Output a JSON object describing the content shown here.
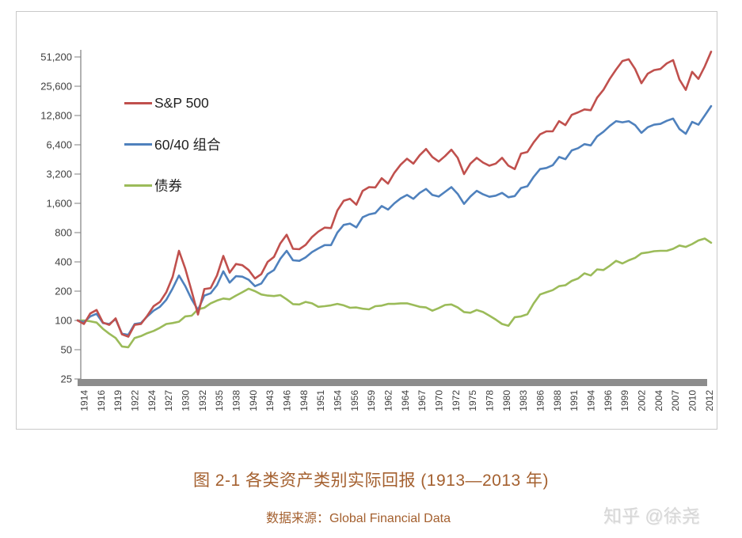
{
  "caption": "图 2-1 各类资产类别实际回报 (1913—2013 年)",
  "source_line": "数据来源：Global Financial Data",
  "watermark": "知乎 @徐尧",
  "colors": {
    "sp500": "#C0504D",
    "portfolio6040": "#4F81BD",
    "bonds": "#9BBB59",
    "axis": "#7f7f7f",
    "axis_bar": "#8c8c8c",
    "tick_text": "#3f3f3f",
    "caption_text": "#a4602f",
    "frame_border": "#c9c9c9",
    "watermark_text": "#d7d7d7"
  },
  "chart_data": {
    "type": "line",
    "title": "图 2-1 各类资产类别实际回报 (1913—2013 年)",
    "source": "数据来源：Global Financial Data",
    "grid": false,
    "legend_position": "upper-left",
    "y_axis": {
      "scale": "log2",
      "min": 25,
      "max": 51200,
      "ticks": [
        {
          "value": 51200,
          "label": "51,200"
        },
        {
          "value": 25600,
          "label": "25,600"
        },
        {
          "value": 12800,
          "label": "12,800"
        },
        {
          "value": 6400,
          "label": "6,400"
        },
        {
          "value": 3200,
          "label": "3,200"
        },
        {
          "value": 1600,
          "label": "1,600"
        },
        {
          "value": 800,
          "label": "800"
        },
        {
          "value": 400,
          "label": "400"
        },
        {
          "value": 200,
          "label": "200"
        },
        {
          "value": 100,
          "label": "100"
        },
        {
          "value": 50,
          "label": "50"
        },
        {
          "value": 25,
          "label": "25"
        }
      ]
    },
    "x_axis": {
      "first_tick_year": 1914,
      "tick_interval_months": 32,
      "tick_labels": [
        "1914",
        "1916",
        "1919",
        "1922",
        "1924",
        "1927",
        "1930",
        "1932",
        "1935",
        "1938",
        "1940",
        "1943",
        "1946",
        "1948",
        "1951",
        "1954",
        "1956",
        "1959",
        "1962",
        "1964",
        "1967",
        "1970",
        "1972",
        "1975",
        "1978",
        "1980",
        "1983",
        "1986",
        "1988",
        "1991",
        "1994",
        "1996",
        "1999",
        "2002",
        "2004",
        "2007",
        "2010",
        "2012"
      ]
    },
    "x_years": {
      "start": 1913,
      "end": 2013,
      "step": 1
    },
    "series": [
      {
        "name": "S&P 500",
        "color": "#C0504D",
        "values": [
          100,
          92,
          118,
          128,
          95,
          90,
          105,
          72,
          68,
          90,
          92,
          112,
          140,
          155,
          195,
          280,
          520,
          340,
          200,
          115,
          210,
          215,
          290,
          460,
          310,
          380,
          370,
          330,
          270,
          300,
          400,
          450,
          620,
          760,
          545,
          540,
          600,
          720,
          820,
          900,
          890,
          1350,
          1700,
          1780,
          1550,
          2150,
          2350,
          2330,
          2900,
          2550,
          3300,
          4000,
          4600,
          4100,
          5000,
          5800,
          4800,
          4300,
          4900,
          5700,
          4700,
          3200,
          4100,
          4700,
          4200,
          3900,
          4100,
          4700,
          3900,
          3600,
          5200,
          5400,
          6800,
          8200,
          8800,
          8800,
          11200,
          10200,
          13000,
          13800,
          14800,
          14500,
          19500,
          23500,
          30500,
          38000,
          46500,
          48500,
          38500,
          27500,
          34500,
          37500,
          38500,
          44000,
          47500,
          30000,
          23500,
          36000,
          30500,
          41000,
          58000
        ]
      },
      {
        "name": "60/40 组合",
        "color": "#4F81BD",
        "values": [
          100,
          96,
          110,
          117,
          94,
          92,
          103,
          73,
          71,
          92,
          94,
          110,
          126,
          138,
          163,
          213,
          290,
          225,
          165,
          128,
          180,
          190,
          230,
          320,
          245,
          285,
          282,
          262,
          225,
          240,
          300,
          330,
          430,
          520,
          415,
          410,
          445,
          505,
          550,
          595,
          595,
          800,
          960,
          990,
          905,
          1150,
          1230,
          1270,
          1500,
          1380,
          1600,
          1800,
          1950,
          1780,
          2050,
          2250,
          1950,
          1880,
          2100,
          2350,
          2000,
          1580,
          1880,
          2150,
          1980,
          1870,
          1920,
          2050,
          1850,
          1900,
          2300,
          2400,
          3000,
          3600,
          3700,
          3950,
          4800,
          4550,
          5600,
          5900,
          6500,
          6300,
          7800,
          8700,
          10000,
          11200,
          10900,
          11200,
          10200,
          8500,
          9700,
          10300,
          10500,
          11300,
          11900,
          9300,
          8300,
          11000,
          10300,
          12800,
          16000
        ]
      },
      {
        "name": "债券",
        "color": "#9BBB59",
        "values": [
          100,
          100,
          98,
          95,
          82,
          73,
          66,
          54,
          53,
          66,
          69,
          74,
          78,
          84,
          92,
          94,
          97,
          110,
          112,
          130,
          135,
          150,
          160,
          168,
          165,
          180,
          195,
          212,
          200,
          185,
          180,
          178,
          182,
          165,
          147,
          146,
          155,
          150,
          138,
          140,
          143,
          148,
          143,
          135,
          136,
          132,
          130,
          140,
          142,
          148,
          148,
          150,
          150,
          144,
          138,
          136,
          126,
          134,
          144,
          146,
          136,
          122,
          120,
          128,
          122,
          112,
          102,
          92,
          88,
          108,
          110,
          116,
          150,
          185,
          195,
          205,
          225,
          230,
          255,
          270,
          305,
          290,
          335,
          330,
          365,
          410,
          385,
          415,
          440,
          490,
          500,
          515,
          520,
          520,
          545,
          590,
          570,
          610,
          665,
          695,
          630
        ]
      }
    ]
  }
}
